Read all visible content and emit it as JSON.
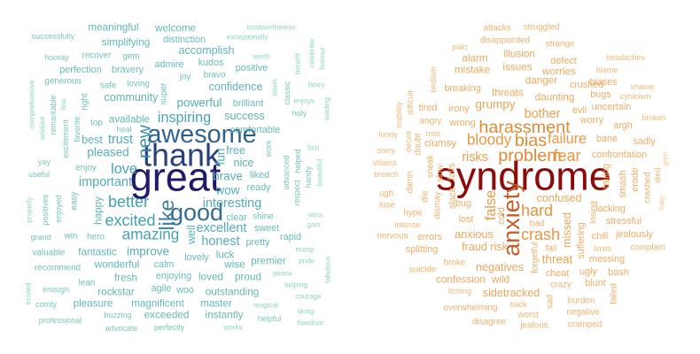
{
  "chart_data": [
    {
      "type": "wordcloud",
      "title": "",
      "color_scale": {
        "low": "#8fd4c2",
        "mid": "#3f9fae",
        "high": "#1f1a6b"
      },
      "words": [
        [
          "great",
          5.0
        ],
        [
          "thank",
          4.0
        ],
        [
          "awesome",
          3.2
        ],
        [
          "good",
          3.0
        ],
        [
          "like",
          2.6
        ],
        [
          "new",
          2.3
        ],
        [
          "better",
          2.0
        ],
        [
          "excited",
          2.0
        ],
        [
          "amazing",
          1.9
        ],
        [
          "inspiring",
          1.8
        ],
        [
          "love",
          1.8
        ],
        [
          "important",
          1.6
        ],
        [
          "excellent",
          1.6
        ],
        [
          "interesting",
          1.6
        ],
        [
          "honest",
          1.6
        ],
        [
          "trust",
          1.6
        ],
        [
          "pleased",
          1.5
        ],
        [
          "best",
          1.4
        ],
        [
          "fun",
          1.5
        ],
        [
          "improve",
          1.5
        ],
        [
          "powerful",
          1.5
        ],
        [
          "brave",
          1.5
        ],
        [
          "wow",
          1.5
        ],
        [
          "success",
          1.4
        ],
        [
          "free",
          1.4
        ],
        [
          "nice",
          1.4
        ],
        [
          "community",
          1.4
        ],
        [
          "confidence",
          1.4
        ],
        [
          "accomplish",
          1.4
        ],
        [
          "well",
          1.4
        ],
        [
          "happy",
          1.3
        ],
        [
          "fantastic",
          1.3
        ],
        [
          "wonderful",
          1.3
        ],
        [
          "available",
          1.3
        ],
        [
          "welcome",
          1.3
        ],
        [
          "simplifying",
          1.3
        ],
        [
          "meaningful",
          1.3
        ],
        [
          "perfection",
          1.2
        ],
        [
          "bravery",
          1.2
        ],
        [
          "outstanding",
          1.3
        ],
        [
          "magnificent",
          1.3
        ],
        [
          "premier",
          1.3
        ],
        [
          "luck",
          1.3
        ],
        [
          "wise",
          1.3
        ],
        [
          "loved",
          1.3
        ],
        [
          "proud",
          1.3
        ],
        [
          "rockstar",
          1.3
        ],
        [
          "fresh",
          1.3
        ],
        [
          "exceeded",
          1.3
        ],
        [
          "instantly",
          1.3
        ],
        [
          "master",
          1.3
        ],
        [
          "pleasure",
          1.3
        ],
        [
          "lovely",
          1.2
        ],
        [
          "calm",
          1.2
        ],
        [
          "enjoying",
          1.2
        ],
        [
          "agile",
          1.2
        ],
        [
          "woo",
          1.2
        ],
        [
          "pretty",
          1.2
        ],
        [
          "rapid",
          1.2
        ],
        [
          "sweet",
          1.2
        ],
        [
          "liked",
          1.2
        ],
        [
          "ready",
          1.2
        ],
        [
          "clear",
          1.2
        ],
        [
          "shine",
          1.1
        ],
        [
          "comfortable",
          1.2
        ],
        [
          "brilliant",
          1.2
        ],
        [
          "positive",
          1.2
        ],
        [
          "kudos",
          1.2
        ],
        [
          "admire",
          1.2
        ],
        [
          "bravo",
          1.1
        ],
        [
          "joy",
          1.1
        ],
        [
          "distinction",
          1.2
        ],
        [
          "gem",
          1.1
        ],
        [
          "loving",
          1.1
        ],
        [
          "safe",
          1.1
        ],
        [
          "recover",
          1.1
        ],
        [
          "hooray",
          1.0
        ],
        [
          "successfully",
          1.0
        ],
        [
          "generous",
          1.1
        ],
        [
          "valuable",
          1.1
        ],
        [
          "recommend",
          1.1
        ],
        [
          "enough",
          1.0
        ],
        [
          "lean",
          1.1
        ],
        [
          "hero",
          1.1
        ],
        [
          "win",
          1.1
        ],
        [
          "grand",
          1.0
        ],
        [
          "enjoy",
          1.1
        ],
        [
          "easy",
          1.1
        ],
        [
          "enjoyed",
          1.0
        ],
        [
          "yay",
          1.0
        ],
        [
          "useful",
          1.0
        ],
        [
          "positives",
          1.0
        ],
        [
          "properly",
          0.9
        ],
        [
          "comfy",
          1.0
        ],
        [
          "professional",
          1.0
        ],
        [
          "trusted",
          0.9
        ],
        [
          "buzzing",
          1.0
        ],
        [
          "advocate",
          1.0
        ],
        [
          "perfectly",
          1.0
        ],
        [
          "works",
          0.9
        ],
        [
          "helpful",
          1.0
        ],
        [
          "magical",
          0.9
        ],
        [
          "freedom",
          0.9
        ],
        [
          "liking",
          0.9
        ],
        [
          "courage",
          0.9
        ],
        [
          "helping",
          0.9
        ],
        [
          "peace",
          0.9
        ],
        [
          "fabulous",
          0.9
        ],
        [
          "pride",
          0.9
        ],
        [
          "trump",
          0.9
        ],
        [
          "gain",
          0.9
        ],
        [
          "wins",
          0.9
        ],
        [
          "beautiful",
          0.9
        ],
        [
          "handy",
          1.0
        ],
        [
          "helped",
          1.0
        ],
        [
          "respect",
          1.0
        ],
        [
          "advanced",
          1.0
        ],
        [
          "work",
          1.0
        ],
        [
          "fast",
          0.9
        ],
        [
          "holy",
          1.0
        ],
        [
          "enjoys",
          0.9
        ],
        [
          "classic",
          1.0
        ],
        [
          "dawn",
          0.9
        ],
        [
          "fancy",
          0.9
        ],
        [
          "benefit",
          0.9
        ],
        [
          "worth",
          0.9
        ],
        [
          "leading",
          0.9
        ],
        [
          "honour",
          0.9
        ],
        [
          "celebrate",
          0.9
        ],
        [
          "exceptionally",
          0.9
        ],
        [
          "trustworthiness",
          0.9
        ],
        [
          "super",
          1.1
        ],
        [
          "right",
          1.1
        ],
        [
          "top",
          1.1
        ],
        [
          "heal",
          1.0
        ],
        [
          "favorite",
          1.0
        ],
        [
          "excitement",
          1.0
        ],
        [
          "remarkable",
          1.0
        ],
        [
          "worked",
          0.9
        ],
        [
          "comprehensive",
          0.9
        ],
        [
          "fine",
          0.9
        ]
      ]
    },
    {
      "type": "wordcloud",
      "title": "",
      "color_scale": {
        "low": "#f5c48e",
        "mid": "#e6943a",
        "high": "#8b0a0a"
      },
      "words": [
        [
          "syndrome",
          5.0
        ],
        [
          "anxiety",
          3.0
        ],
        [
          "harassment",
          2.2
        ],
        [
          "problem",
          2.2
        ],
        [
          "bias",
          2.2
        ],
        [
          "fear",
          2.0
        ],
        [
          "hard",
          2.0
        ],
        [
          "crash",
          2.0
        ],
        [
          "bloody",
          1.9
        ],
        [
          "failure",
          1.8
        ],
        [
          "false",
          1.8
        ],
        [
          "bother",
          1.6
        ],
        [
          "risks",
          1.6
        ],
        [
          "grumpy",
          1.5
        ],
        [
          "threat",
          1.5
        ],
        [
          "confused",
          1.4
        ],
        [
          "anxious",
          1.4
        ],
        [
          "missed",
          1.4
        ],
        [
          "fraud risk",
          1.4
        ],
        [
          "negatives",
          1.4
        ],
        [
          "sidetracked",
          1.4
        ],
        [
          "wild",
          1.3
        ],
        [
          "confession",
          1.3
        ],
        [
          "clumsy",
          1.3
        ],
        [
          "issues",
          1.3
        ],
        [
          "daunting",
          1.3
        ],
        [
          "worries",
          1.3
        ],
        [
          "danger",
          1.3
        ],
        [
          "mistake",
          1.3
        ],
        [
          "alarm",
          1.3
        ],
        [
          "illusion",
          1.3
        ],
        [
          "defect",
          1.2
        ],
        [
          "crushed",
          1.2
        ],
        [
          "biases",
          1.2
        ],
        [
          "bugs",
          1.2
        ],
        [
          "uncertain",
          1.2
        ],
        [
          "evil",
          1.2
        ],
        [
          "worry",
          1.2
        ],
        [
          "argh",
          1.2
        ],
        [
          "bane",
          1.2
        ],
        [
          "sadly",
          1.2
        ],
        [
          "confrontation",
          1.2
        ],
        [
          "failing",
          1.2
        ],
        [
          "smash",
          1.2
        ],
        [
          "erode",
          1.2
        ],
        [
          "crashed",
          1.1
        ],
        [
          "lacking",
          1.2
        ],
        [
          "stressful",
          1.2
        ],
        [
          "chill",
          1.2
        ],
        [
          "jealously",
          1.2
        ],
        [
          "complain",
          1.1
        ],
        [
          "bash",
          1.2
        ],
        [
          "blunt",
          1.2
        ],
        [
          "failed",
          1.1
        ],
        [
          "burden",
          1.1
        ],
        [
          "negative",
          1.1
        ],
        [
          "cramped",
          1.1
        ],
        [
          "jealous",
          1.1
        ],
        [
          "worst",
          1.1
        ],
        [
          "disagree",
          1.1
        ],
        [
          "hack",
          1.0
        ],
        [
          "overwhelming",
          1.1
        ],
        [
          "itching",
          1.0
        ],
        [
          "suicide",
          1.1
        ],
        [
          "broke",
          1.1
        ],
        [
          "splitting",
          1.2
        ],
        [
          "errors",
          1.2
        ],
        [
          "nervous",
          1.1
        ],
        [
          "intense",
          1.0
        ],
        [
          "hype",
          1.1
        ],
        [
          "lose",
          1.1
        ],
        [
          "ugh",
          1.1
        ],
        [
          "breach",
          1.0
        ],
        [
          "villains",
          1.0
        ],
        [
          "sorry",
          1.0
        ],
        [
          "funny",
          1.0
        ],
        [
          "angry",
          1.1
        ],
        [
          "wrong",
          1.2
        ],
        [
          "irony",
          1.2
        ],
        [
          "tired",
          1.2
        ],
        [
          "breaking",
          1.2
        ],
        [
          "threats",
          1.3
        ],
        [
          "struggled",
          1.1
        ],
        [
          "attacks",
          1.1
        ],
        [
          "pain",
          1.0
        ],
        [
          "disappointed",
          1.1
        ],
        [
          "strange",
          1.1
        ],
        [
          "headaches",
          1.0
        ],
        [
          "blame",
          1.0
        ],
        [
          "shame",
          1.0
        ],
        [
          "cynicism",
          1.0
        ],
        [
          "broken",
          1.0
        ],
        [
          "flaky",
          0.9
        ],
        [
          "grim",
          0.9
        ],
        [
          "died",
          1.0
        ],
        [
          "limits",
          1.0
        ],
        [
          "ugly",
          1.2
        ],
        [
          "suffering",
          1.2
        ],
        [
          "losing",
          1.1
        ],
        [
          "bad",
          1.1
        ],
        [
          "fail",
          1.1
        ],
        [
          "crazy",
          1.1
        ],
        [
          "cheat",
          1.2
        ],
        [
          "forgetful",
          1.1
        ],
        [
          "sad",
          1.1
        ],
        [
          "messing",
          1.2
        ],
        [
          "lost",
          1.2
        ],
        [
          "bug",
          1.2
        ],
        [
          "slack",
          1.2
        ],
        [
          "fails",
          1.2
        ],
        [
          "slow",
          1.1
        ],
        [
          "sneak",
          1.1
        ],
        [
          "dismay",
          1.1
        ],
        [
          "die",
          1.1
        ],
        [
          "damn",
          1.1
        ],
        [
          "doubt",
          1.1
        ],
        [
          "deceit",
          1.0
        ],
        [
          "mist",
          1.0
        ],
        [
          "difficult",
          1.0
        ],
        [
          "bedlam",
          1.0
        ],
        [
          "inability",
          1.0
        ],
        [
          "cold",
          1.2
        ]
      ]
    }
  ]
}
